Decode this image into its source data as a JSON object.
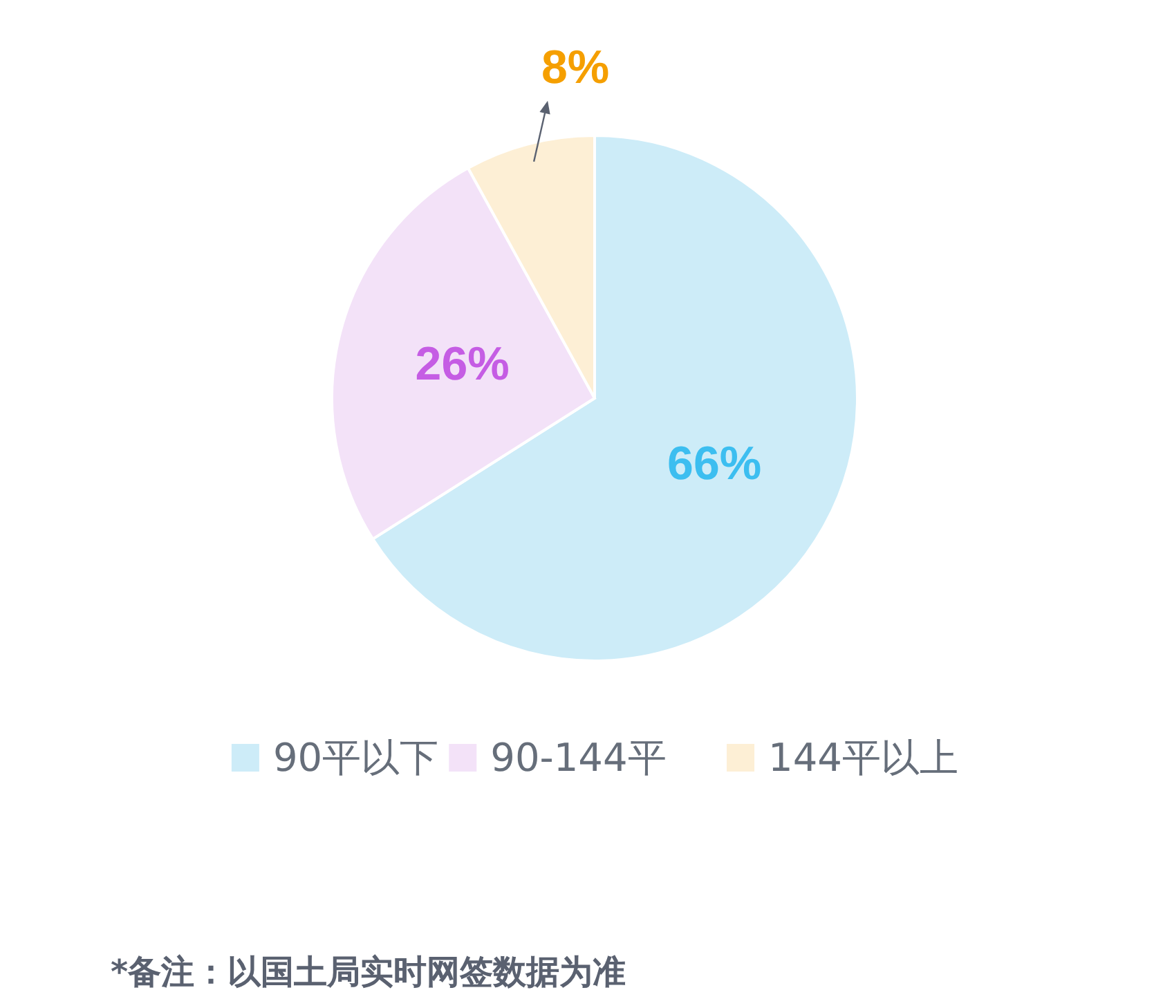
{
  "chart_data": {
    "type": "pie",
    "categories": [
      "90平以下",
      "90-144平",
      "144平以上"
    ],
    "values": [
      66,
      26,
      8
    ],
    "colors": [
      "#cdecf8",
      "#f3e2f8",
      "#fdefd5"
    ],
    "value_labels": [
      "66%",
      "26%",
      "8%"
    ],
    "legend": "bottom",
    "annotations": [
      "*备注：以国土局实时网签数据为准"
    ]
  }
}
